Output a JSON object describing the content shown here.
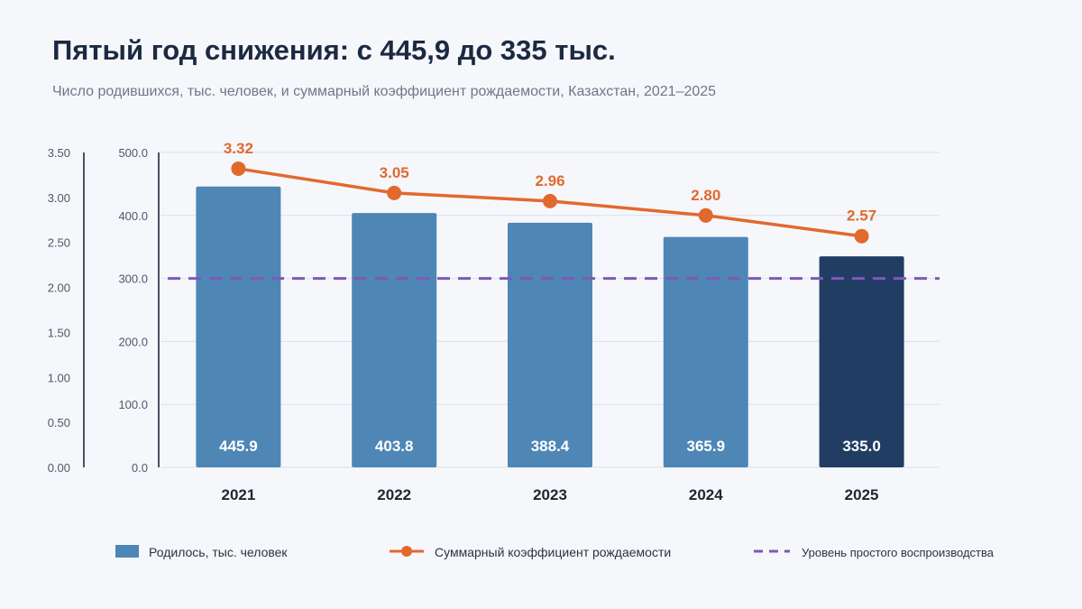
{
  "header": {
    "title": "Пятый год снижения: с 445,9 до 335 тыс.",
    "subtitle": "Число родившихся, тыс. человек, и суммарный коэффициент рождаемости, Казахстан, 2021–2025"
  },
  "chart_data": {
    "type": "bar",
    "categories": [
      "2021",
      "2022",
      "2023",
      "2024",
      "2025"
    ],
    "series": [
      {
        "name": "Родилось, тыс. человек",
        "type": "bar",
        "axis": "left",
        "values": [
          445.9,
          403.8,
          388.4,
          365.9,
          335.0
        ],
        "labels": [
          "445.9",
          "403.8",
          "388.4",
          "365.9",
          "335.0"
        ],
        "color": "#4e86b5",
        "highlight_color": "#213d63",
        "highlight_index": 4
      },
      {
        "name": "Суммарный коэффициент рождаемости",
        "type": "line",
        "axis": "outer",
        "values": [
          3.32,
          3.05,
          2.96,
          2.8,
          2.57
        ],
        "labels": [
          "3.32",
          "3.05",
          "2.96",
          "2.80",
          "2.57"
        ],
        "color": "#e2692e"
      },
      {
        "name": "Уровень простого воспроизводства",
        "type": "reference-line",
        "axis": "outer",
        "value": 2.1,
        "color": "#8058b8"
      }
    ],
    "left_axis": {
      "ylim": [
        0,
        500
      ],
      "ticks": [
        "0.0",
        "100.0",
        "200.0",
        "300.0",
        "400.0",
        "500.0"
      ]
    },
    "outer_axis": {
      "ylim": [
        0,
        3.5
      ],
      "ticks": [
        "0.00",
        "0.50",
        "1.00",
        "1.50",
        "2.00",
        "2.50",
        "3.00",
        "3.50"
      ]
    },
    "grid": true,
    "legend_position": "bottom"
  }
}
